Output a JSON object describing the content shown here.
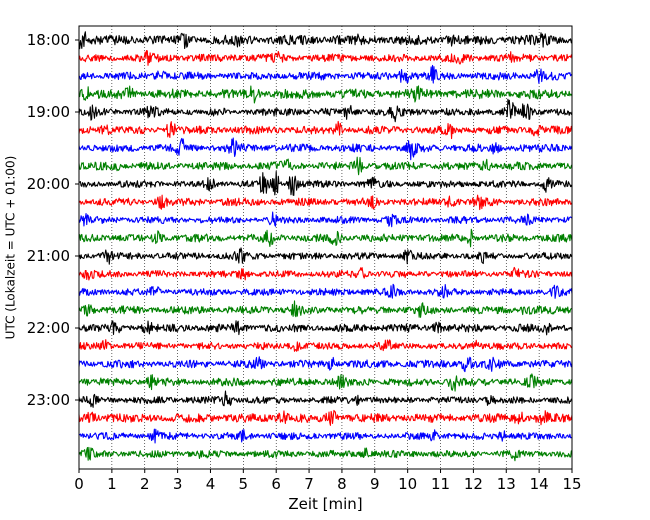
{
  "chart_data": {
    "type": "line",
    "title": "",
    "xlabel": "Zeit  [min]",
    "ylabel": "UTC (Lokalzeit = UTC + 01:00)",
    "xlim": [
      0,
      15
    ],
    "x_ticks": [
      0,
      1,
      2,
      3,
      4,
      5,
      6,
      7,
      8,
      9,
      10,
      11,
      12,
      13,
      14,
      15
    ],
    "x_tick_labels": [
      "0",
      "1",
      "2",
      "3",
      "4",
      "5",
      "6",
      "7",
      "8",
      "9",
      "10",
      "11",
      "12",
      "13",
      "14",
      "15"
    ],
    "y_tick_labels": [
      "18:00",
      "19:00",
      "20:00",
      "21:00",
      "22:00",
      "23:00"
    ],
    "grid": "vertical dotted lines at each minute",
    "legend": "none",
    "trace_interval_minutes": 15,
    "traces_per_hour": 4,
    "series_color_cycle": [
      "#000000",
      "#ff0000",
      "#0000ff",
      "#008000"
    ],
    "traces": [
      {
        "start": "18:00",
        "amplitude": 0.55,
        "bursts": [
          [
            0.1,
            1.0
          ],
          [
            3.2,
            0.55
          ],
          [
            4.8,
            0.45
          ],
          [
            8.4,
            0.5
          ],
          [
            11.3,
            0.45
          ],
          [
            14.1,
            0.55
          ]
        ]
      },
      {
        "start": "18:15",
        "amplitude": 0.45,
        "bursts": [
          [
            2.1,
            0.5
          ],
          [
            6.0,
            0.45
          ],
          [
            11.5,
            0.8
          ],
          [
            13.2,
            0.45
          ]
        ]
      },
      {
        "start": "18:30",
        "amplitude": 0.45,
        "bursts": [
          [
            2.5,
            0.6
          ],
          [
            9.9,
            0.95
          ],
          [
            10.8,
            0.9
          ],
          [
            14.0,
            0.55
          ]
        ]
      },
      {
        "start": "18:45",
        "amplitude": 0.55,
        "bursts": [
          [
            0.2,
            0.7
          ],
          [
            1.5,
            0.55
          ],
          [
            5.3,
            0.65
          ],
          [
            10.3,
            0.6
          ]
        ]
      },
      {
        "start": "19:00",
        "amplitude": 0.45,
        "bursts": [
          [
            0.4,
            0.5
          ],
          [
            2.2,
            0.5
          ],
          [
            8.2,
            0.7
          ],
          [
            9.6,
            0.65
          ],
          [
            13.1,
            1.2
          ],
          [
            13.6,
            0.9
          ]
        ]
      },
      {
        "start": "19:15",
        "amplitude": 0.45,
        "bursts": [
          [
            0.8,
            0.55
          ],
          [
            2.8,
            0.9
          ],
          [
            7.9,
            0.65
          ],
          [
            11.3,
            0.65
          ],
          [
            13.9,
            0.5
          ]
        ]
      },
      {
        "start": "19:30",
        "amplitude": 0.45,
        "bursts": [
          [
            3.1,
            0.95
          ],
          [
            4.7,
            0.7
          ],
          [
            10.1,
            0.95
          ],
          [
            12.7,
            0.5
          ]
        ]
      },
      {
        "start": "19:45",
        "amplitude": 0.45,
        "bursts": [
          [
            1.1,
            0.45
          ],
          [
            6.3,
            0.5
          ],
          [
            8.5,
            0.7
          ],
          [
            12.4,
            0.5
          ]
        ]
      },
      {
        "start": "20:00",
        "amplitude": 0.4,
        "bursts": [
          [
            4.0,
            0.5
          ],
          [
            5.6,
            1.2
          ],
          [
            6.0,
            1.1
          ],
          [
            6.5,
            1.2
          ],
          [
            8.9,
            0.5
          ],
          [
            14.2,
            0.65
          ]
        ]
      },
      {
        "start": "20:15",
        "amplitude": 0.45,
        "bursts": [
          [
            2.5,
            0.45
          ],
          [
            8.9,
            0.5
          ],
          [
            11.3,
            0.45
          ],
          [
            12.2,
            0.5
          ]
        ]
      },
      {
        "start": "20:30",
        "amplitude": 0.4,
        "bursts": [
          [
            0.2,
            0.45
          ],
          [
            5.9,
            0.5
          ],
          [
            9.5,
            0.45
          ],
          [
            13.6,
            0.45
          ]
        ]
      },
      {
        "start": "20:45",
        "amplitude": 0.45,
        "bursts": [
          [
            2.4,
            0.5
          ],
          [
            5.8,
            0.6
          ],
          [
            7.8,
            0.7
          ],
          [
            11.9,
            0.75
          ]
        ]
      },
      {
        "start": "21:00",
        "amplitude": 0.4,
        "bursts": [
          [
            0.9,
            0.55
          ],
          [
            4.9,
            0.75
          ],
          [
            10.0,
            0.55
          ],
          [
            12.3,
            0.45
          ]
        ]
      },
      {
        "start": "21:15",
        "amplitude": 0.4,
        "bursts": [
          [
            0.3,
            0.5
          ],
          [
            5.0,
            0.45
          ],
          [
            8.6,
            0.45
          ],
          [
            13.3,
            0.45
          ]
        ]
      },
      {
        "start": "21:30",
        "amplitude": 0.4,
        "bursts": [
          [
            2.3,
            0.5
          ],
          [
            9.5,
            0.6
          ],
          [
            11.1,
            0.5
          ],
          [
            14.5,
            0.45
          ]
        ]
      },
      {
        "start": "21:45",
        "amplitude": 0.45,
        "bursts": [
          [
            0.3,
            0.5
          ],
          [
            6.6,
            0.75
          ],
          [
            10.4,
            0.5
          ],
          [
            13.6,
            0.5
          ]
        ]
      },
      {
        "start": "22:00",
        "amplitude": 0.45,
        "bursts": [
          [
            1.1,
            0.6
          ],
          [
            2.1,
            0.5
          ],
          [
            4.8,
            0.5
          ],
          [
            10.9,
            0.5
          ],
          [
            14.2,
            0.5
          ]
        ]
      },
      {
        "start": "22:15",
        "amplitude": 0.4,
        "bursts": [
          [
            0.8,
            0.45
          ],
          [
            6.6,
            0.45
          ],
          [
            9.4,
            0.5
          ],
          [
            12.1,
            0.45
          ]
        ]
      },
      {
        "start": "22:30",
        "amplitude": 0.45,
        "bursts": [
          [
            5.4,
            0.7
          ],
          [
            7.7,
            0.65
          ],
          [
            11.8,
            0.95
          ],
          [
            12.6,
            0.55
          ]
        ]
      },
      {
        "start": "22:45",
        "amplitude": 0.45,
        "bursts": [
          [
            2.2,
            0.5
          ],
          [
            8.0,
            0.55
          ],
          [
            11.4,
            0.7
          ],
          [
            13.8,
            0.5
          ]
        ]
      },
      {
        "start": "23:00",
        "amplitude": 0.4,
        "bursts": [
          [
            0.4,
            0.5
          ],
          [
            4.5,
            0.75
          ],
          [
            8.4,
            0.5
          ],
          [
            12.5,
            0.45
          ]
        ]
      },
      {
        "start": "23:15",
        "amplitude": 0.5,
        "bursts": [
          [
            0.4,
            0.65
          ],
          [
            6.2,
            0.65
          ],
          [
            7.7,
            0.65
          ],
          [
            13.4,
            0.65
          ],
          [
            14.1,
            0.7
          ]
        ]
      },
      {
        "start": "23:30",
        "amplitude": 0.4,
        "bursts": [
          [
            2.3,
            0.45
          ],
          [
            5.0,
            0.5
          ],
          [
            10.8,
            0.45
          ],
          [
            12.9,
            0.45
          ]
        ]
      },
      {
        "start": "23:45",
        "amplitude": 0.4,
        "bursts": [
          [
            0.3,
            0.45
          ],
          [
            3.8,
            0.45
          ],
          [
            8.7,
            0.5
          ],
          [
            13.3,
            0.45
          ]
        ]
      }
    ]
  }
}
